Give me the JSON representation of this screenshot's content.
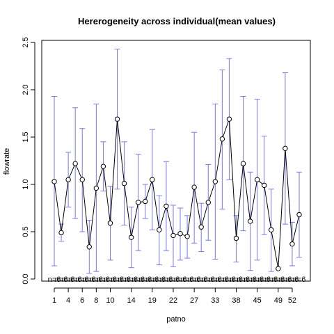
{
  "chart_data": {
    "type": "line",
    "title": "Hererogeneity across individual(mean values)",
    "xlabel": "patno",
    "ylabel": "flowrate",
    "ylim": [
      0,
      2.5
    ],
    "yticks": [
      0.0,
      0.5,
      1.0,
      1.5,
      2.0,
      2.5
    ],
    "ytick_labels": [
      "0.0",
      "0.5",
      "1.0",
      "1.5",
      "2.0",
      "2.5"
    ],
    "xtick_labels": [
      {
        "pos": 1,
        "label": "1"
      },
      {
        "pos": 3,
        "label": "4"
      },
      {
        "pos": 5,
        "label": "6"
      },
      {
        "pos": 7,
        "label": "8"
      },
      {
        "pos": 9,
        "label": "10"
      },
      {
        "pos": 12,
        "label": "14"
      },
      {
        "pos": 15,
        "label": "19"
      },
      {
        "pos": 18,
        "label": "22"
      },
      {
        "pos": 21,
        "label": "27"
      },
      {
        "pos": 24,
        "label": "33"
      },
      {
        "pos": 27,
        "label": "38"
      },
      {
        "pos": 30,
        "label": "45"
      },
      {
        "pos": 33,
        "label": "49"
      },
      {
        "pos": 35,
        "label": "52"
      }
    ],
    "grid": false,
    "line_color": "#000000",
    "errorbar_color": "#7777ee",
    "n_label": "n=6",
    "series": [
      {
        "means": [
          1.03,
          0.49,
          1.05,
          1.22,
          1.05,
          0.34,
          0.96,
          1.19,
          0.59,
          1.69,
          1.01,
          0.44,
          0.81,
          0.82,
          1.05,
          0.52,
          0.77,
          0.46,
          0.48,
          0.45,
          0.97,
          0.55,
          0.81,
          1.03,
          1.48,
          1.69,
          0.43,
          1.22,
          0.61,
          1.05,
          0.99,
          0.52,
          0.11,
          1.38,
          0.37,
          0.68
        ],
        "upper": [
          1.93,
          0.58,
          1.34,
          1.81,
          1.59,
          0.62,
          1.85,
          1.45,
          0.98,
          2.43,
          1.45,
          0.76,
          1.32,
          1.0,
          1.58,
          0.88,
          1.24,
          0.78,
          0.75,
          0.67,
          1.55,
          0.8,
          1.21,
          1.85,
          2.21,
          2.33,
          0.67,
          1.93,
          1.13,
          1.9,
          1.51,
          0.95,
          0.11,
          2.18,
          0.6,
          1.13
        ],
        "lower": [
          0.14,
          0.4,
          0.76,
          0.64,
          0.5,
          0.06,
          0.08,
          0.93,
          0.2,
          0.95,
          0.57,
          0.12,
          0.3,
          0.64,
          0.52,
          0.15,
          0.3,
          0.13,
          0.2,
          0.22,
          0.38,
          0.29,
          0.41,
          0.21,
          0.74,
          1.05,
          0.18,
          0.51,
          0.09,
          0.2,
          0.47,
          0.08,
          0.11,
          0.58,
          0.14,
          0.23
        ]
      }
    ]
  }
}
